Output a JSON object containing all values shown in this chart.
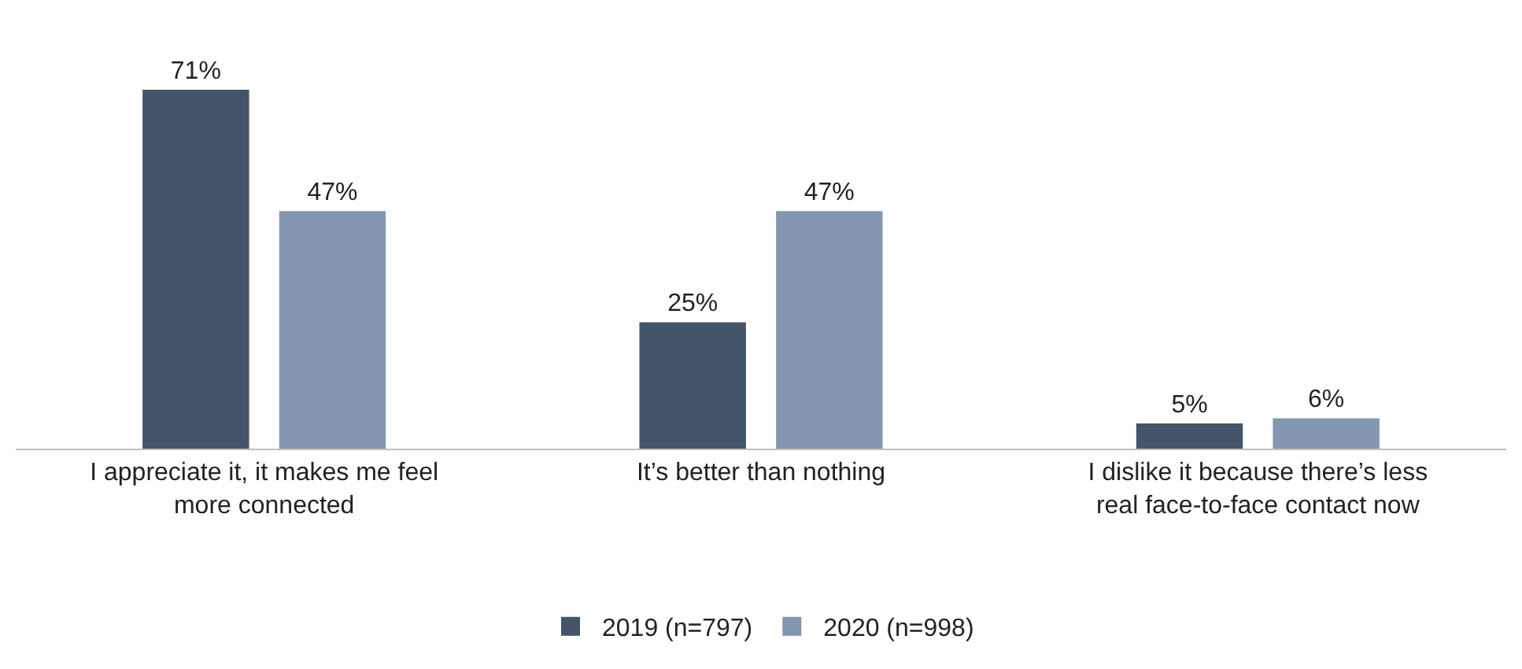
{
  "chart_data": {
    "type": "bar",
    "categories": [
      "I appreciate it, it makes me feel more connected",
      "It’s better than nothing",
      "I dislike it because there’s less real face-to-face contact now"
    ],
    "series": [
      {
        "name": "2019 (n=797)",
        "color": "#44546a",
        "values": [
          71,
          25,
          5
        ],
        "value_labels": [
          "71%",
          "25%",
          "5%"
        ]
      },
      {
        "name": "2020 (n=998)",
        "color": "#8497b0",
        "values": [
          47,
          47,
          6
        ],
        "value_labels": [
          "47%",
          "47%",
          "6%"
        ]
      }
    ],
    "tick_labels": "x",
    "grid": false,
    "legend": "bottom"
  }
}
